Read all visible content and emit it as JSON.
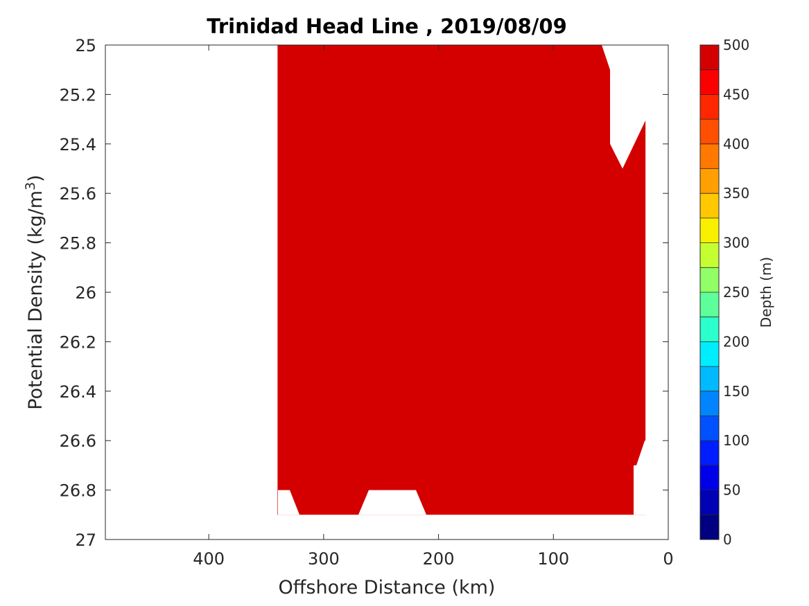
{
  "chart_data": {
    "type": "filled-contour",
    "title": "Trinidad Head Line , 2019/08/09",
    "xlabel": "Offshore Distance (km)",
    "ylabel_main": "Potential Density (kg/m",
    "ylabel_sup": "3",
    "ylabel_close": ")",
    "x_reversed": true,
    "xlim": [
      490,
      0
    ],
    "ylim": [
      25,
      27
    ],
    "y_reversed": true,
    "x_ticks": [
      "400",
      "300",
      "200",
      "100",
      "0"
    ],
    "y_ticks": [
      "25",
      "25.2",
      "25.4",
      "25.6",
      "25.8",
      "26",
      "26.2",
      "26.4",
      "26.6",
      "26.8",
      "27"
    ],
    "colorbar": {
      "label": "Depth (m)",
      "min": 0,
      "max": 500,
      "step": 25,
      "ticks": [
        "500",
        "450",
        "400",
        "350",
        "300",
        "250",
        "200",
        "150",
        "100",
        "50",
        "0"
      ],
      "colors": [
        "#000080",
        "#0000b4",
        "#0000e8",
        "#001dff",
        "#0051ff",
        "#0085ff",
        "#00b9ff",
        "#00edff",
        "#2affcd",
        "#5dff9a",
        "#91ff66",
        "#c5ff32",
        "#f9f000",
        "#ffc800",
        "#ffa000",
        "#ff7800",
        "#ff4f00",
        "#ff2700",
        "#fc0000",
        "#d40000"
      ]
    },
    "distances_km": [
      340,
      320,
      300,
      290,
      280,
      270,
      260,
      250,
      240,
      230,
      220,
      210,
      200,
      190,
      180,
      170,
      160,
      150,
      140,
      130,
      120,
      110,
      100,
      90,
      80,
      70,
      60,
      50,
      40,
      30,
      20
    ],
    "isopycnal_depth_levels_m": [
      25,
      50,
      75,
      100,
      125,
      150,
      175,
      200,
      225,
      250,
      275,
      300,
      325,
      350,
      375,
      400,
      425,
      450,
      475
    ],
    "isopycnal_sigma": [
      [
        25.0,
        25.0,
        25.0,
        25.0,
        25.0,
        25.0,
        25.0,
        25.0,
        25.0,
        25.0,
        25.0,
        25.0,
        25.0,
        25.0,
        25.0,
        25.0,
        25.0,
        25.0,
        25.0,
        25.0,
        25.0,
        25.0,
        25.0,
        25.0,
        25.0,
        25.0,
        25.0,
        25.0,
        25.0,
        25.0,
        25.0
      ],
      [
        25.0,
        25.0,
        25.0,
        25.0,
        25.0,
        25.0,
        25.0,
        25.0,
        25.0,
        25.0,
        25.0,
        25.0,
        25.0,
        25.0,
        25.0,
        25.0,
        25.0,
        25.0,
        25.0,
        25.0,
        25.0,
        25.0,
        25.0,
        25.0,
        25.0,
        25.0,
        25.0,
        25.0,
        25.0,
        25.0,
        25.0
      ],
      [
        25.0,
        25.0,
        25.0,
        25.0,
        25.0,
        25.0,
        25.0,
        25.0,
        25.0,
        25.0,
        25.0,
        25.0,
        25.0,
        25.0,
        25.0,
        25.0,
        25.0,
        25.0,
        25.0,
        25.0,
        25.0,
        25.0,
        25.0,
        25.0,
        25.0,
        25.0,
        25.0,
        25.0,
        25.0,
        25.0,
        25.0
      ],
      [
        25.0,
        25.0,
        25.0,
        25.0,
        25.0,
        25.0,
        25.0,
        25.0,
        25.0,
        25.0,
        25.0,
        25.0,
        25.0,
        25.0,
        25.0,
        25.0,
        25.0,
        25.0,
        25.0,
        25.0,
        25.0,
        25.0,
        25.0,
        25.0,
        25.0,
        25.0,
        25.0,
        25.0,
        25.0,
        25.0,
        25.0
      ],
      [
        25.0,
        25.0,
        25.0,
        25.0,
        25.0,
        25.0,
        25.0,
        25.0,
        25.0,
        25.0,
        25.0,
        25.0,
        25.0,
        25.0,
        25.0,
        25.0,
        25.0,
        25.0,
        25.0,
        25.0,
        25.0,
        25.0,
        25.0,
        25.0,
        25.0,
        25.0,
        25.0,
        25.0,
        25.0,
        25.0,
        25.0
      ],
      [
        25.0,
        25.0,
        25.0,
        25.0,
        25.0,
        25.0,
        25.0,
        25.0,
        25.0,
        25.0,
        25.0,
        25.0,
        25.0,
        25.0,
        25.0,
        25.0,
        25.0,
        25.0,
        25.0,
        25.0,
        25.0,
        25.0,
        25.0,
        25.0,
        25.0,
        25.0,
        25.0,
        25.0,
        25.0,
        25.0,
        25.0
      ],
      [
        25.0,
        25.0,
        25.0,
        25.0,
        25.0,
        25.0,
        25.0,
        25.0,
        25.0,
        25.0,
        25.0,
        25.0,
        25.0,
        25.0,
        25.0,
        25.0,
        25.0,
        25.0,
        25.0,
        25.0,
        25.0,
        25.0,
        25.0,
        25.0,
        25.0,
        25.0,
        25.0,
        25.0,
        25.0,
        25.0,
        25.0
      ],
      [
        25.0,
        25.0,
        25.0,
        25.0,
        25.0,
        25.0,
        25.0,
        25.0,
        25.0,
        25.0,
        25.0,
        25.0,
        25.0,
        25.0,
        25.0,
        25.0,
        25.0,
        25.0,
        25.0,
        25.0,
        25.0,
        25.0,
        25.0,
        25.0,
        25.0,
        25.0,
        25.0,
        25.0,
        25.0,
        25.0,
        25.0
      ],
      [
        25.0,
        25.0,
        25.0,
        25.0,
        25.0,
        25.0,
        25.0,
        25.0,
        25.0,
        25.0,
        25.0,
        25.0,
        25.0,
        25.0,
        25.0,
        25.0,
        25.0,
        25.0,
        25.0,
        25.0,
        25.0,
        25.0,
        25.0,
        25.0,
        25.0,
        25.0,
        25.0,
        25.0,
        25.0,
        25.0,
        25.0
      ],
      [
        25.0,
        25.0,
        25.0,
        25.0,
        25.0,
        25.0,
        25.0,
        25.0,
        25.0,
        25.0,
        25.0,
        25.0,
        25.0,
        25.0,
        25.0,
        25.0,
        25.0,
        25.0,
        25.0,
        25.0,
        25.0,
        25.0,
        25.0,
        25.0,
        25.0,
        25.0,
        25.0,
        25.0,
        25.0,
        25.0,
        25.0
      ],
      [
        25.0,
        25.0,
        25.0,
        25.0,
        25.0,
        25.0,
        25.0,
        25.0,
        25.0,
        25.0,
        25.0,
        25.0,
        25.0,
        25.0,
        25.0,
        25.0,
        25.0,
        25.0,
        25.0,
        25.0,
        25.0,
        25.0,
        25.0,
        25.0,
        25.0,
        25.0,
        25.0,
        25.0,
        25.0,
        25.0,
        25.0
      ],
      [
        25.0,
        25.0,
        25.0,
        25.0,
        25.0,
        25.0,
        25.0,
        25.0,
        25.0,
        25.0,
        25.0,
        25.0,
        25.0,
        25.0,
        25.0,
        25.0,
        25.0,
        25.0,
        25.0,
        25.0,
        25.0,
        25.0,
        25.0,
        25.0,
        25.0,
        25.0,
        25.0,
        25.0,
        25.0,
        25.0,
        25.0
      ],
      [
        25.0,
        25.0,
        25.0,
        25.0,
        25.0,
        25.0,
        25.0,
        25.0,
        25.0,
        25.0,
        25.0,
        25.0,
        25.0,
        25.0,
        25.0,
        25.0,
        25.0,
        25.0,
        25.0,
        25.0,
        25.0,
        25.0,
        25.0,
        25.0,
        25.0,
        25.0,
        25.0,
        25.0,
        25.0,
        25.0,
        25.0
      ],
      [
        25.0,
        25.0,
        25.0,
        25.0,
        25.0,
        25.0,
        25.0,
        25.0,
        25.0,
        25.0,
        25.0,
        25.0,
        25.0,
        25.0,
        25.0,
        25.0,
        25.0,
        25.0,
        25.0,
        25.0,
        25.0,
        25.0,
        25.0,
        25.0,
        25.0,
        25.0,
        25.0,
        25.0,
        25.0,
        25.0,
        25.0
      ],
      [
        25.0,
        25.0,
        25.0,
        25.0,
        25.0,
        25.0,
        25.0,
        25.0,
        25.0,
        25.0,
        25.0,
        25.0,
        25.0,
        25.0,
        25.0,
        25.0,
        25.0,
        25.0,
        25.0,
        25.0,
        25.0,
        25.0,
        25.0,
        25.0,
        25.0,
        25.0,
        25.0,
        25.0,
        25.0,
        25.0,
        25.0
      ],
      [
        25.0,
        25.0,
        25.0,
        25.0,
        25.0,
        25.0,
        25.0,
        25.0,
        25.0,
        25.0,
        25.0,
        25.0,
        25.0,
        25.0,
        25.0,
        25.0,
        25.0,
        25.0,
        25.0,
        25.0,
        25.0,
        25.0,
        25.0,
        25.0,
        25.0,
        25.0,
        25.0,
        25.0,
        25.0,
        25.0,
        25.0
      ],
      [
        25.0,
        25.0,
        25.0,
        25.0,
        25.0,
        25.0,
        25.0,
        25.0,
        25.0,
        25.0,
        25.0,
        25.0,
        25.0,
        25.0,
        25.0,
        25.0,
        25.0,
        25.0,
        25.0,
        25.0,
        25.0,
        25.0,
        25.0,
        25.0,
        25.0,
        25.0,
        25.0,
        25.0,
        25.0,
        25.0,
        25.0
      ],
      [
        25.0,
        25.0,
        25.0,
        25.0,
        25.0,
        25.0,
        25.0,
        25.0,
        25.0,
        25.0,
        25.0,
        25.0,
        25.0,
        25.0,
        25.0,
        25.0,
        25.0,
        25.0,
        25.0,
        25.0,
        25.0,
        25.0,
        25.0,
        25.0,
        25.0,
        25.0,
        25.0,
        25.0,
        25.0,
        25.0,
        25.0
      ],
      [
        25.0,
        25.0,
        25.0,
        25.0,
        25.0,
        25.0,
        25.0,
        25.0,
        25.0,
        25.0,
        25.0,
        25.0,
        25.0,
        25.0,
        25.0,
        25.0,
        25.0,
        25.0,
        25.0,
        25.0,
        25.0,
        25.0,
        25.0,
        25.0,
        25.0,
        25.0,
        25.0,
        25.0,
        25.0,
        25.0,
        25.0
      ]
    ]
  }
}
